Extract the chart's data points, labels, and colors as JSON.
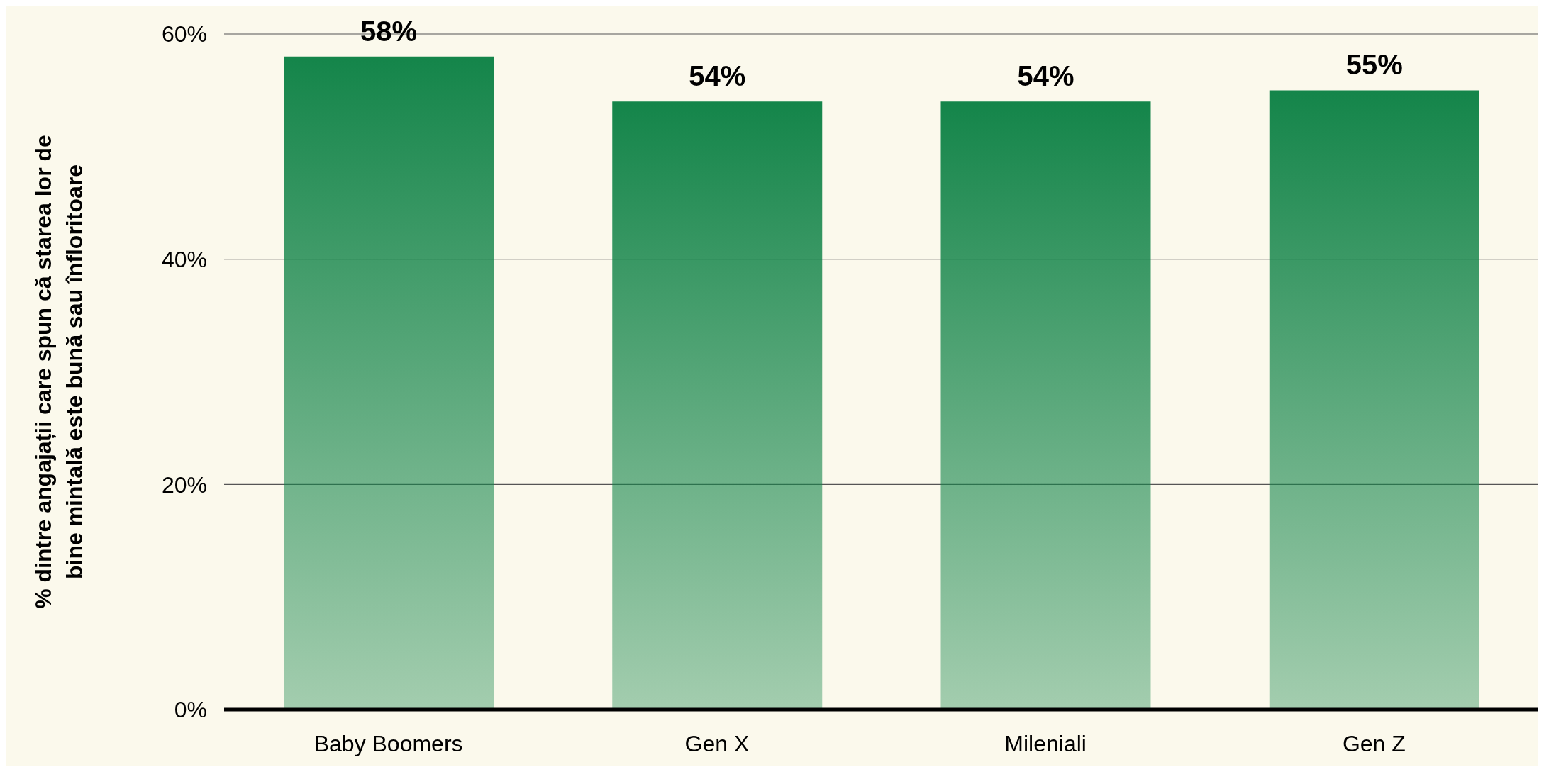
{
  "chart_data": {
    "type": "bar",
    "ylabel": "% dintre angajații care spun că starea lor de bine mintală este bună sau înfloritoare",
    "categories": [
      "Baby Boomers",
      "Gen X",
      "Mileniali",
      "Gen Z"
    ],
    "values": [
      58,
      54,
      54,
      55
    ],
    "value_labels": [
      "58%",
      "54%",
      "54%",
      "55%"
    ],
    "color": "#14854a",
    "ylim": [
      0,
      60
    ],
    "yticks": [
      {
        "value": 0,
        "label": "0%"
      },
      {
        "value": 20,
        "label": "20%"
      },
      {
        "value": 40,
        "label": "40%"
      },
      {
        "value": 60,
        "label": "60%"
      }
    ],
    "grid": "y",
    "legend": false
  }
}
